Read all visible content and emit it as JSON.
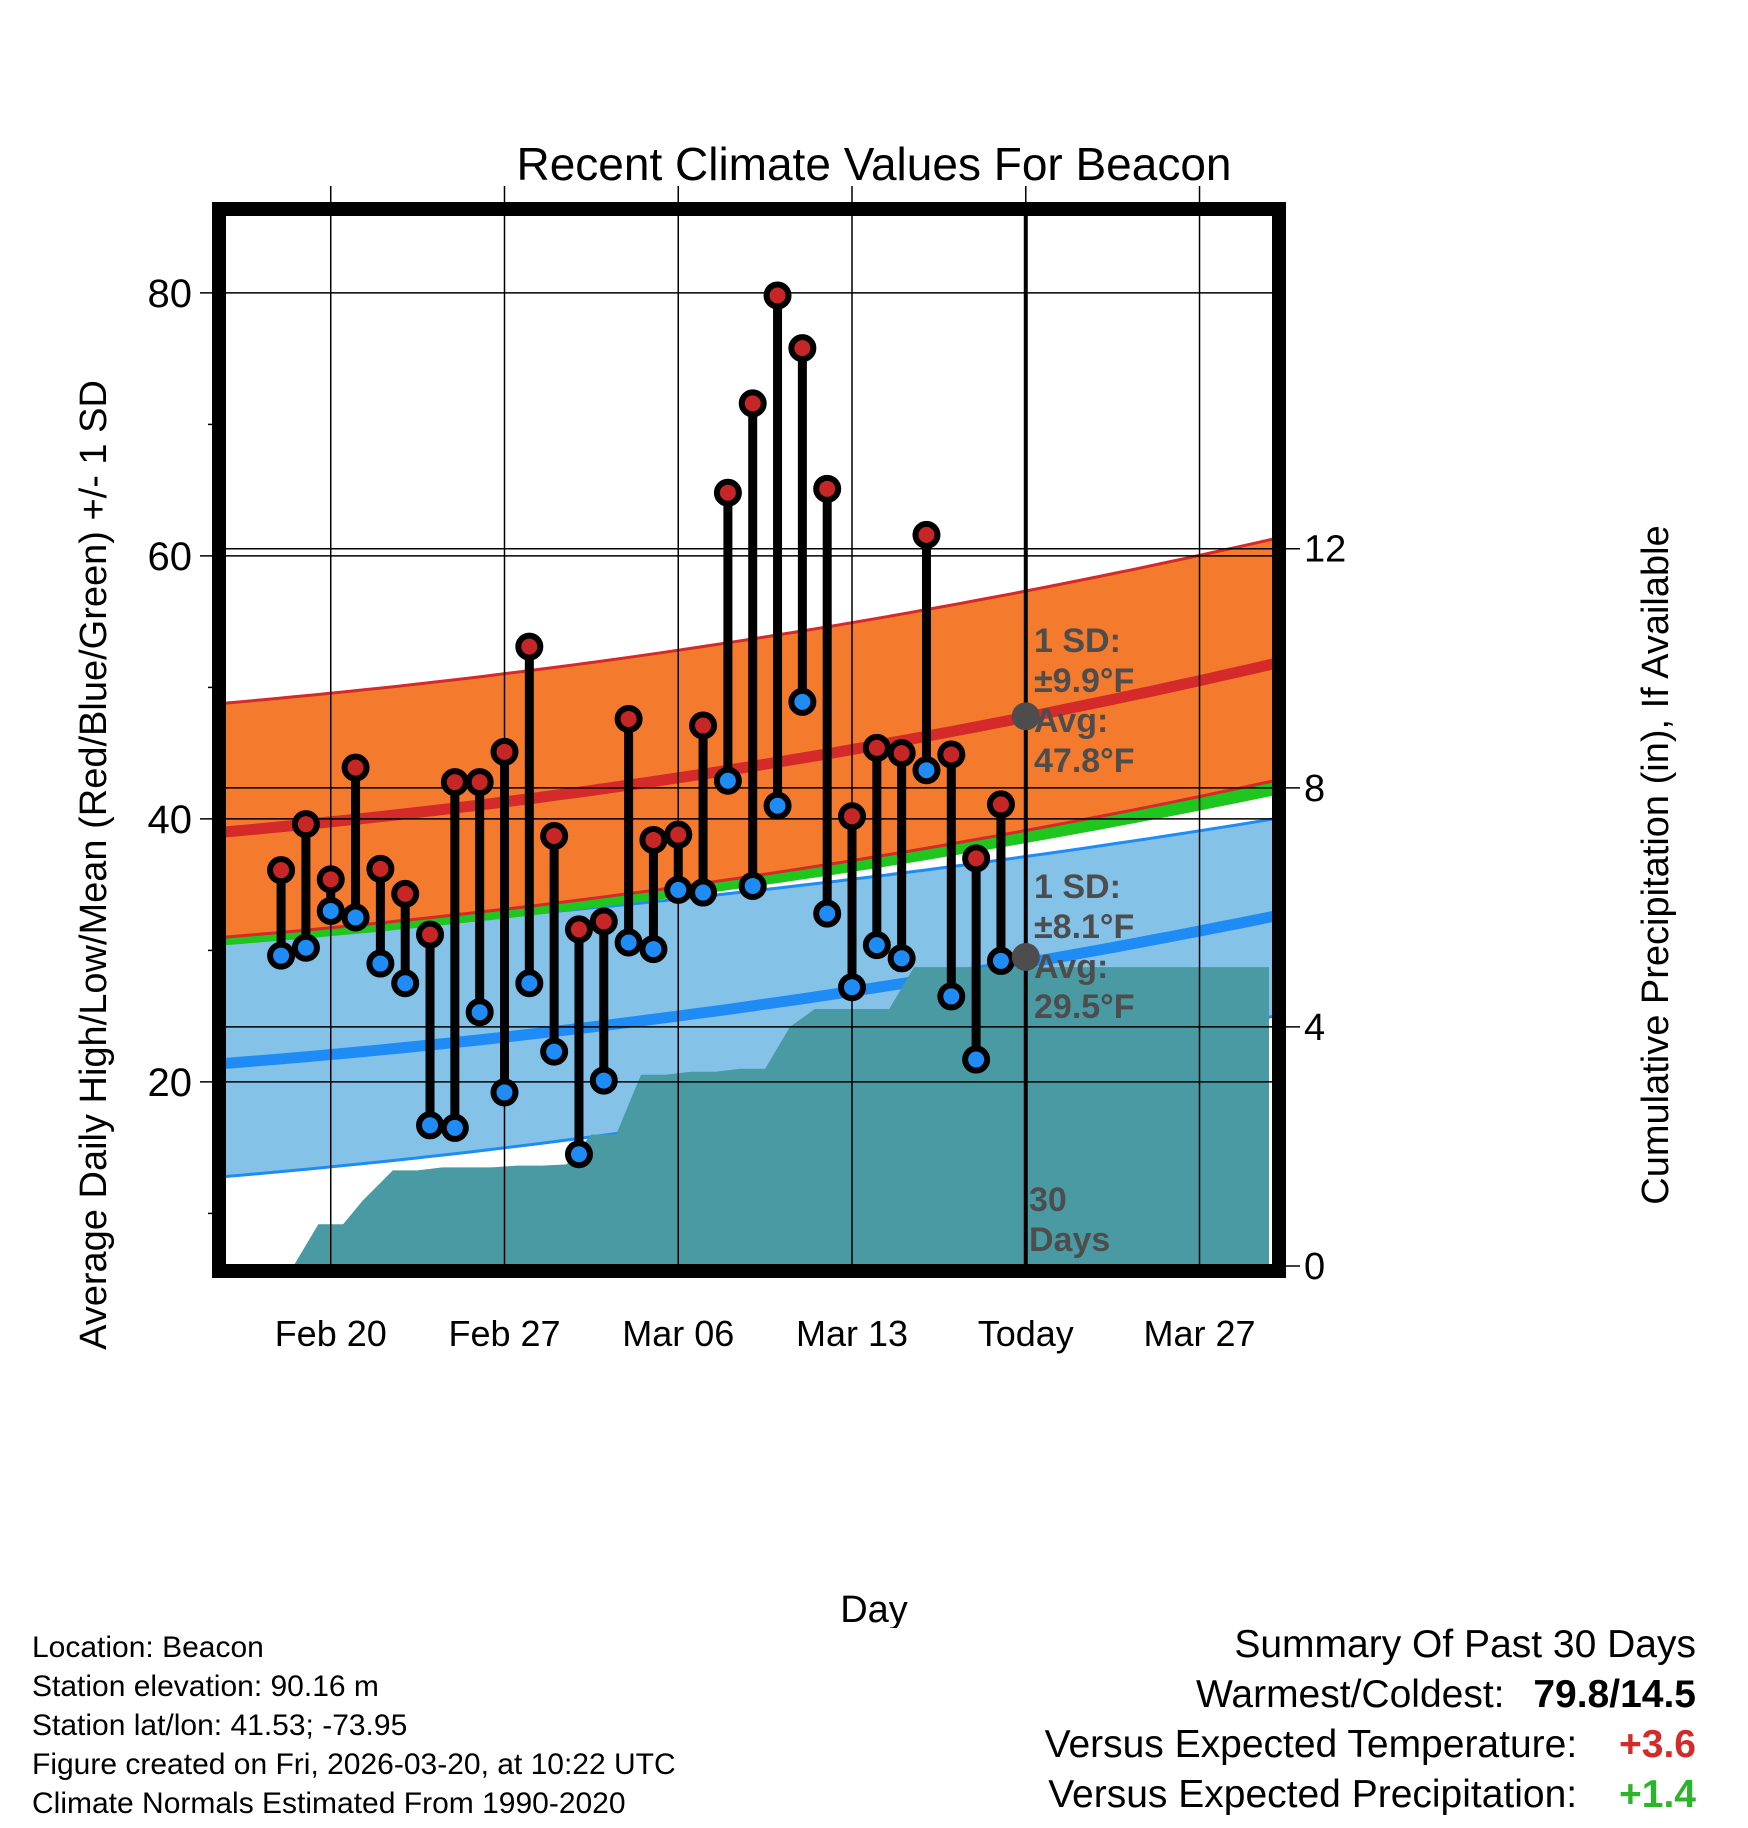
{
  "chart_data": {
    "type": "line",
    "title": "Recent Climate Values For Beacon",
    "xlabel": "Day",
    "ylabel_left": "Average Daily High/Low/Mean (Red/Blue/Green) +/- 1 SD",
    "ylabel_right": "Cumulative Precipitation (in), If Available",
    "ylim_left": [
      6,
      86
    ],
    "ylim_right": [
      0,
      17.6
    ],
    "xlim_day": [
      -32.3,
      10.0
    ],
    "x_ticks": [
      {
        "day": -28,
        "label": "Feb 20"
      },
      {
        "day": -21,
        "label": "Feb 27"
      },
      {
        "day": -14,
        "label": "Mar 06"
      },
      {
        "day": -7,
        "label": "Mar 13"
      },
      {
        "day": 0,
        "label": "Today"
      },
      {
        "day": 7,
        "label": "Mar 27"
      }
    ],
    "y_ticks_left": [
      20,
      40,
      60,
      80
    ],
    "y_minor_left": [
      10,
      30,
      50,
      70
    ],
    "y_ticks_right": [
      0,
      4,
      8,
      12
    ],
    "grid": true,
    "normals": {
      "high_avg": {
        "start": 39.0,
        "end": 51.8,
        "today": 47.8
      },
      "high_upper": {
        "start": 48.8,
        "end": 61.3
      },
      "high_lower": {
        "start": 31.0,
        "end": 42.9
      },
      "low_avg": {
        "start": 21.4,
        "end": 32.6,
        "today": 29.5
      },
      "low_upper": {
        "start": 31.0,
        "end": 40.0
      },
      "low_lower": {
        "start": 12.8,
        "end": 25.0
      },
      "mean_avg": {
        "start": 31.0,
        "end": 42.4
      }
    },
    "annotations": {
      "high": {
        "line1": "1 SD:",
        "line2": "±9.9°F",
        "line3": "Avg:",
        "line4": "47.8°F"
      },
      "low": {
        "line1": "1 SD:",
        "line2": "±8.1°F",
        "line3": "Avg:",
        "line4": "29.5°F"
      },
      "today_marker": {
        "line1": "30",
        "line2": "Days"
      }
    },
    "observations": [
      {
        "day": -30,
        "high": 36.1,
        "low": 29.6
      },
      {
        "day": -29,
        "high": 39.6,
        "low": 30.2
      },
      {
        "day": -28,
        "high": 35.4,
        "low": 33.0
      },
      {
        "day": -27,
        "high": 43.9,
        "low": 32.5
      },
      {
        "day": -26,
        "high": 36.2,
        "low": 29.0
      },
      {
        "day": -25,
        "high": 34.3,
        "low": 27.5
      },
      {
        "day": -24,
        "high": 31.2,
        "low": 16.7
      },
      {
        "day": -23,
        "high": 42.8,
        "low": 16.5
      },
      {
        "day": -22,
        "high": 42.8,
        "low": 25.3
      },
      {
        "day": -21,
        "high": 45.1,
        "low": 19.2
      },
      {
        "day": -20,
        "high": 53.1,
        "low": 27.5
      },
      {
        "day": -19,
        "high": 38.7,
        "low": 22.3
      },
      {
        "day": -18,
        "high": 31.6,
        "low": 14.5
      },
      {
        "day": -17,
        "high": 32.2,
        "low": 20.1
      },
      {
        "day": -16,
        "high": 47.6,
        "low": 30.6
      },
      {
        "day": -15,
        "high": 38.4,
        "low": 30.1
      },
      {
        "day": -14,
        "high": 38.8,
        "low": 34.6
      },
      {
        "day": -13,
        "high": 47.1,
        "low": 34.4
      },
      {
        "day": -12,
        "high": 64.8,
        "low": 42.9
      },
      {
        "day": -11,
        "high": 71.6,
        "low": 34.9
      },
      {
        "day": -10,
        "high": 79.8,
        "low": 41.0
      },
      {
        "day": -9,
        "high": 75.8,
        "low": 48.9
      },
      {
        "day": -8,
        "high": 65.1,
        "low": 32.8
      },
      {
        "day": -7,
        "high": 40.2,
        "low": 27.2
      },
      {
        "day": -6,
        "high": 45.4,
        "low": 30.4
      },
      {
        "day": -5,
        "high": 45.0,
        "low": 29.4
      },
      {
        "day": -4,
        "high": 61.6,
        "low": 43.7
      },
      {
        "day": -3,
        "high": 44.9,
        "low": 26.5
      },
      {
        "day": -2,
        "high": 37.0,
        "low": 21.7
      },
      {
        "day": -1,
        "high": 41.1,
        "low": 29.2
      }
    ],
    "precipitation": [
      {
        "day": -29.5,
        "value": 0
      },
      {
        "day": -28.5,
        "value": 0.7
      },
      {
        "day": -27.5,
        "value": 0.7
      },
      {
        "day": -26.7,
        "value": 1.1
      },
      {
        "day": -25.5,
        "value": 1.6
      },
      {
        "day": -24.5,
        "value": 1.6
      },
      {
        "day": -23.5,
        "value": 1.65
      },
      {
        "day": -22.5,
        "value": 1.65
      },
      {
        "day": -21.5,
        "value": 1.65
      },
      {
        "day": -20.5,
        "value": 1.68
      },
      {
        "day": -19.5,
        "value": 1.68
      },
      {
        "day": -18.5,
        "value": 1.7
      },
      {
        "day": -17.5,
        "value": 2.2
      },
      {
        "day": -16.5,
        "value": 2.2
      },
      {
        "day": -15.5,
        "value": 3.2
      },
      {
        "day": -14.5,
        "value": 3.2
      },
      {
        "day": -13.5,
        "value": 3.25
      },
      {
        "day": -12.5,
        "value": 3.25
      },
      {
        "day": -11.5,
        "value": 3.3
      },
      {
        "day": -10.5,
        "value": 3.3
      },
      {
        "day": -9.5,
        "value": 4.0
      },
      {
        "day": -8.5,
        "value": 4.3
      },
      {
        "day": -7.5,
        "value": 4.3
      },
      {
        "day": -6.5,
        "value": 4.3
      },
      {
        "day": -5.5,
        "value": 4.3
      },
      {
        "day": -4.5,
        "value": 5.0
      },
      {
        "day": 9.8,
        "value": 5.0
      }
    ],
    "colors": {
      "high_band": "#f47a2e",
      "high_line": "#d42a2a",
      "low_band": "#85c2e8",
      "low_line": "#1f8cf5",
      "mean_line": "#1ec61e",
      "precip": "#4a9aa3",
      "high_dot": "#c62626",
      "low_dot": "#1f8cf5",
      "annot": "#4d4d4d"
    }
  },
  "info": {
    "location": "Location: Beacon",
    "elevation": "Station elevation: 90.16 m",
    "latlon": "Station lat/lon: 41.53; -73.95",
    "created": "Figure created on Fri, 2026-03-20, at 10:22 UTC",
    "normals": "Climate Normals Estimated From 1990-2020"
  },
  "summary": {
    "title": "Summary Of Past 30 Days",
    "warm_cold_label": "Warmest/Coldest:",
    "warm_cold_value": "79.8/14.5",
    "temp_label": "Versus Expected Temperature:",
    "temp_value": "+3.6",
    "precip_label": "Versus Expected Precipitation:",
    "precip_value": "+1.4"
  }
}
